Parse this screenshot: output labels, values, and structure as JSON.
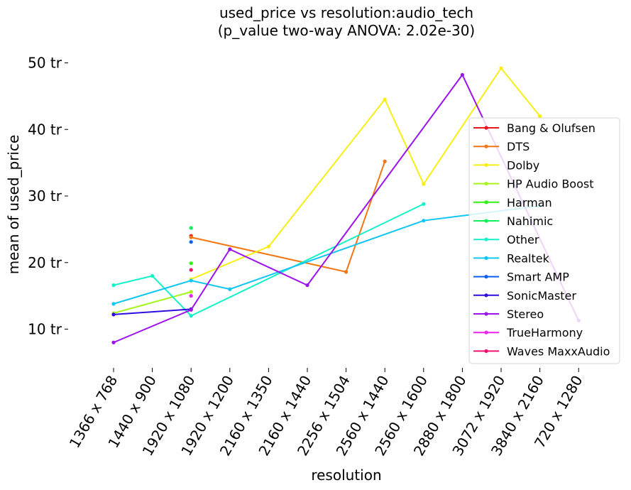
{
  "chart_data": {
    "type": "line",
    "title": "used_price vs resolution:audio_tech",
    "subtitle": "(p_value two-way ANOVA: 2.02e-30)",
    "xlabel": "resolution",
    "ylabel": "mean of used_price",
    "categories": [
      "1366 x 768",
      "1440 x 900",
      "1920 x 1080",
      "1920 x 1200",
      "2160 x 1350",
      "2160 x 1440",
      "2256 x 1504",
      "2560 x 1440",
      "2560 x 1600",
      "2880 x 1800",
      "3072 x 1920",
      "3840 x 2160",
      "720 x 1280"
    ],
    "ylim": [
      4,
      52
    ],
    "yticks": [
      {
        "value": 10,
        "label": "10 tr"
      },
      {
        "value": 20,
        "label": "20 tr"
      },
      {
        "value": 30,
        "label": "30 tr"
      },
      {
        "value": 40,
        "label": "40 tr"
      },
      {
        "value": 50,
        "label": "50 tr"
      }
    ],
    "grid": false,
    "legend_position": "right",
    "series": [
      {
        "name": "Bang & Olufsen",
        "color": "#e8141e",
        "points": [
          [
            2,
            24.0
          ]
        ]
      },
      {
        "name": "DTS",
        "color": "#f27613",
        "points": [
          [
            2,
            23.8
          ],
          [
            6,
            18.6
          ],
          [
            7,
            35.2
          ]
        ]
      },
      {
        "name": "Dolby",
        "color": "#f7ee12",
        "points": [
          [
            2,
            17.5
          ],
          [
            4,
            22.4
          ],
          [
            7,
            44.5
          ],
          [
            8,
            31.8
          ],
          [
            10,
            49.2
          ],
          [
            11,
            42.0
          ]
        ]
      },
      {
        "name": "HP Audio Boost",
        "color": "#a6f51c",
        "points": [
          [
            0,
            12.4
          ],
          [
            2,
            15.6
          ]
        ]
      },
      {
        "name": "Harman",
        "color": "#2ef50f",
        "points": [
          [
            2,
            19.9
          ]
        ]
      },
      {
        "name": "Nahimic",
        "color": "#10f05a",
        "points": [
          [
            2,
            25.2
          ]
        ]
      },
      {
        "name": "Other",
        "color": "#15f2c8",
        "points": [
          [
            0,
            16.6
          ],
          [
            1,
            18.0
          ],
          [
            2,
            12.0
          ],
          [
            8,
            28.8
          ]
        ]
      },
      {
        "name": "Realtek",
        "color": "#10c6f2",
        "points": [
          [
            0,
            13.8
          ],
          [
            2,
            17.3
          ],
          [
            3,
            16.0
          ],
          [
            8,
            26.3
          ],
          [
            11,
            28.5
          ]
        ]
      },
      {
        "name": "Smart AMP",
        "color": "#0d5ef2",
        "points": [
          [
            2,
            23.1
          ]
        ]
      },
      {
        "name": "SonicMaster",
        "color": "#2c0fe0",
        "points": [
          [
            0,
            12.2
          ],
          [
            2,
            13.0
          ]
        ]
      },
      {
        "name": "Stereo",
        "color": "#9d12ec",
        "points": [
          [
            0,
            8.0
          ],
          [
            2,
            12.9
          ],
          [
            3,
            22.0
          ],
          [
            5,
            16.6
          ],
          [
            9,
            48.2
          ],
          [
            12,
            11.3
          ]
        ]
      },
      {
        "name": "TrueHarmony",
        "color": "#f020f0",
        "points": [
          [
            2,
            15.0
          ]
        ]
      },
      {
        "name": "Waves MaxxAudio",
        "color": "#f20f6e",
        "points": [
          [
            2,
            18.9
          ]
        ]
      }
    ]
  }
}
